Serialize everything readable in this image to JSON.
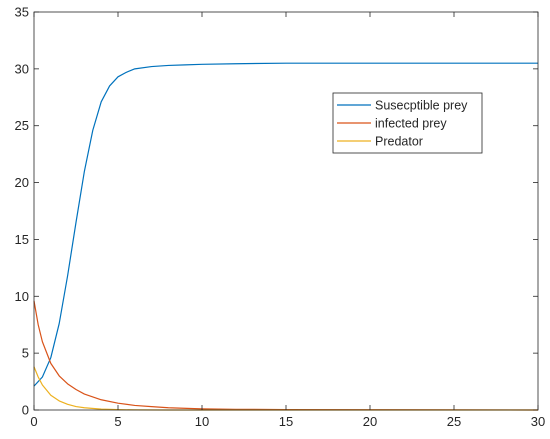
{
  "chart_data": {
    "type": "line",
    "title": "",
    "xlabel": "",
    "ylabel": "",
    "xlim": [
      0,
      30
    ],
    "ylim": [
      0,
      35
    ],
    "xticks": [
      0,
      5,
      10,
      15,
      20,
      25,
      30
    ],
    "yticks": [
      0,
      5,
      10,
      15,
      20,
      25,
      30,
      35
    ],
    "grid": false,
    "legend_position": "upper-right-inside",
    "series": [
      {
        "name": "Susecptible prey",
        "color": "#0072BD",
        "x": [
          0,
          0.5,
          1,
          1.5,
          2,
          2.5,
          3,
          3.5,
          4,
          4.5,
          5,
          5.5,
          6,
          7,
          8,
          9,
          10,
          12,
          15,
          20,
          25,
          30
        ],
        "y": [
          2.1,
          2.9,
          4.6,
          7.6,
          11.8,
          16.5,
          21.0,
          24.6,
          27.1,
          28.5,
          29.3,
          29.7,
          30.0,
          30.2,
          30.3,
          30.35,
          30.4,
          30.45,
          30.5,
          30.5,
          30.5,
          30.5
        ]
      },
      {
        "name": "infected prey",
        "color": "#D95319",
        "x": [
          0,
          0.25,
          0.5,
          1,
          1.5,
          2,
          2.5,
          3,
          4,
          5,
          6,
          7,
          8,
          10,
          12,
          15,
          20,
          25,
          30
        ],
        "y": [
          9.6,
          7.5,
          6.0,
          4.1,
          3.0,
          2.3,
          1.8,
          1.4,
          0.9,
          0.6,
          0.4,
          0.3,
          0.2,
          0.1,
          0.06,
          0.04,
          0.02,
          0.01,
          0.0
        ]
      },
      {
        "name": "Predator",
        "color": "#EDB120",
        "x": [
          0,
          0.25,
          0.5,
          1,
          1.5,
          2,
          2.5,
          3,
          4,
          5,
          6,
          8,
          10,
          15,
          20,
          25,
          30
        ],
        "y": [
          3.8,
          2.9,
          2.2,
          1.3,
          0.8,
          0.5,
          0.3,
          0.2,
          0.08,
          0.03,
          0.01,
          0.0,
          0.0,
          0.0,
          0.0,
          0.0,
          0.0
        ]
      }
    ]
  }
}
